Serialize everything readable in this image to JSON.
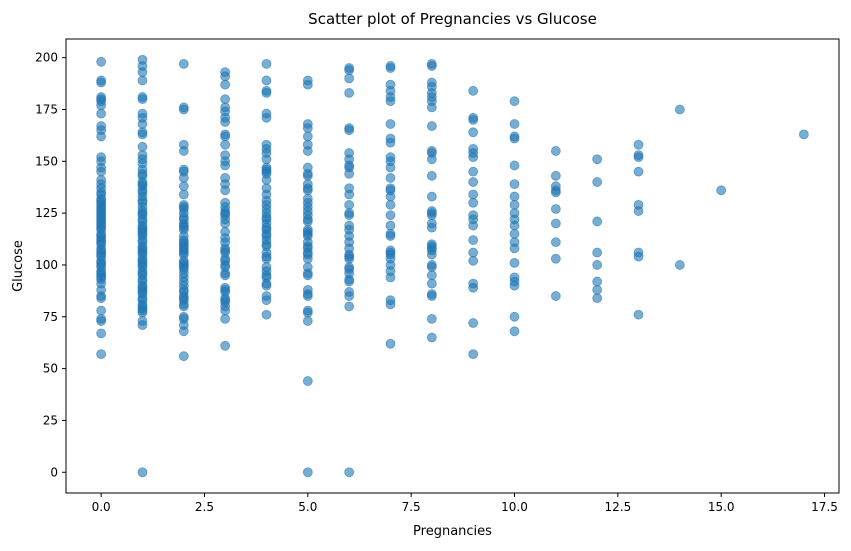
{
  "chart_data": {
    "type": "scatter",
    "title": "Scatter plot of Pregnancies vs Glucose",
    "xlabel": "Pregnancies",
    "ylabel": "Glucose",
    "xlim": [
      -0.85,
      17.85
    ],
    "ylim": [
      -10,
      209
    ],
    "x_ticks": [
      "0.0",
      "2.5",
      "5.0",
      "7.5",
      "10.0",
      "12.5",
      "15.0",
      "17.5"
    ],
    "y_ticks": [
      "0",
      "25",
      "50",
      "75",
      "100",
      "125",
      "150",
      "175",
      "200"
    ],
    "grid": false,
    "legend": "none",
    "marker_color": "#1f77b4",
    "marker_alpha": 0.6,
    "series": [
      {
        "x": 0,
        "y": [
          198,
          189,
          188,
          181,
          180,
          179,
          177,
          173,
          167,
          165,
          162,
          152,
          150,
          147,
          145,
          141,
          139,
          137,
          135,
          134,
          132,
          131,
          130,
          129,
          128,
          127,
          126,
          125,
          124,
          123,
          122,
          121,
          120,
          119,
          118,
          117,
          115,
          114,
          113,
          112,
          111,
          110,
          108,
          107,
          106,
          105,
          104,
          102,
          101,
          100,
          99,
          97,
          96,
          95,
          94,
          93,
          91,
          88,
          85,
          84,
          78,
          74,
          73,
          67,
          57
        ]
      },
      {
        "x": 1,
        "y": [
          199,
          196,
          193,
          189,
          181,
          180,
          173,
          171,
          168,
          164,
          163,
          157,
          153,
          151,
          149,
          146,
          144,
          143,
          140,
          139,
          138,
          136,
          135,
          133,
          131,
          130,
          128,
          126,
          125,
          124,
          122,
          121,
          119,
          118,
          117,
          116,
          115,
          114,
          112,
          111,
          109,
          108,
          107,
          106,
          105,
          103,
          102,
          101,
          100,
          99,
          97,
          96,
          95,
          93,
          92,
          90,
          89,
          88,
          87,
          86,
          84,
          83,
          81,
          80,
          79,
          78,
          77,
          73,
          71,
          0
        ]
      },
      {
        "x": 2,
        "y": [
          197,
          176,
          175,
          158,
          155,
          146,
          145,
          142,
          138,
          134,
          129,
          128,
          127,
          125,
          123,
          122,
          120,
          119,
          118,
          117,
          114,
          112,
          111,
          110,
          109,
          108,
          107,
          106,
          105,
          102,
          101,
          100,
          99,
          98,
          96,
          94,
          92,
          90,
          88,
          87,
          85,
          84,
          83,
          81,
          80,
          75,
          74,
          71,
          68,
          56
        ]
      },
      {
        "x": 3,
        "y": [
          193,
          191,
          187,
          180,
          176,
          174,
          171,
          169,
          163,
          162,
          158,
          153,
          150,
          148,
          142,
          139,
          136,
          130,
          128,
          126,
          125,
          124,
          122,
          120,
          116,
          113,
          111,
          108,
          107,
          106,
          103,
          102,
          100,
          99,
          96,
          95,
          89,
          88,
          87,
          84,
          83,
          82,
          80,
          78,
          74,
          61
        ]
      },
      {
        "x": 4,
        "y": [
          197,
          189,
          184,
          183,
          173,
          171,
          158,
          156,
          154,
          151,
          147,
          146,
          145,
          144,
          141,
          137,
          134,
          131,
          129,
          127,
          125,
          123,
          122,
          120,
          118,
          117,
          115,
          114,
          112,
          110,
          109,
          106,
          104,
          103,
          99,
          97,
          95,
          94,
          91,
          90,
          85,
          83,
          76
        ]
      },
      {
        "x": 5,
        "y": [
          189,
          187,
          168,
          166,
          162,
          158,
          155,
          147,
          144,
          143,
          139,
          137,
          136,
          132,
          130,
          128,
          126,
          124,
          122,
          121,
          117,
          116,
          115,
          114,
          111,
          109,
          108,
          106,
          105,
          103,
          99,
          96,
          95,
          88,
          86,
          85,
          78,
          77,
          73,
          44,
          0
        ]
      },
      {
        "x": 6,
        "y": [
          195,
          194,
          190,
          183,
          166,
          165,
          154,
          151,
          148,
          147,
          144,
          137,
          134,
          129,
          125,
          124,
          119,
          117,
          114,
          111,
          108,
          105,
          104,
          103,
          99,
          98,
          96,
          93,
          92,
          87,
          85,
          80,
          0
        ]
      },
      {
        "x": 7,
        "y": [
          196,
          195,
          187,
          184,
          181,
          179,
          168,
          161,
          159,
          152,
          150,
          147,
          142,
          137,
          136,
          133,
          129,
          124,
          119,
          115,
          114,
          107,
          106,
          105,
          103,
          100,
          97,
          94,
          83,
          81,
          62
        ]
      },
      {
        "x": 8,
        "y": [
          197,
          196,
          188,
          186,
          183,
          181,
          179,
          176,
          167,
          155,
          154,
          151,
          143,
          133,
          126,
          125,
          124,
          120,
          118,
          110,
          109,
          108,
          107,
          105,
          100,
          99,
          95,
          91,
          86,
          85,
          74,
          65
        ]
      },
      {
        "x": 9,
        "y": [
          184,
          171,
          170,
          164,
          156,
          154,
          152,
          145,
          140,
          134,
          130,
          124,
          122,
          119,
          112,
          106,
          102,
          91,
          89,
          72,
          57
        ]
      },
      {
        "x": 10,
        "y": [
          179,
          168,
          162,
          161,
          148,
          139,
          133,
          129,
          125,
          122,
          119,
          115,
          111,
          108,
          101,
          94,
          92,
          90,
          75,
          68
        ]
      },
      {
        "x": 11,
        "y": [
          155,
          143,
          138,
          136,
          135,
          127,
          120,
          111,
          103,
          85
        ]
      },
      {
        "x": 12,
        "y": [
          151,
          140,
          121,
          106,
          100,
          92,
          88,
          84
        ]
      },
      {
        "x": 13,
        "y": [
          158,
          153,
          152,
          145,
          129,
          126,
          106,
          104,
          76
        ]
      },
      {
        "x": 14,
        "y": [
          175,
          100
        ]
      },
      {
        "x": 15,
        "y": [
          136
        ]
      },
      {
        "x": 17,
        "y": [
          163
        ]
      }
    ]
  }
}
